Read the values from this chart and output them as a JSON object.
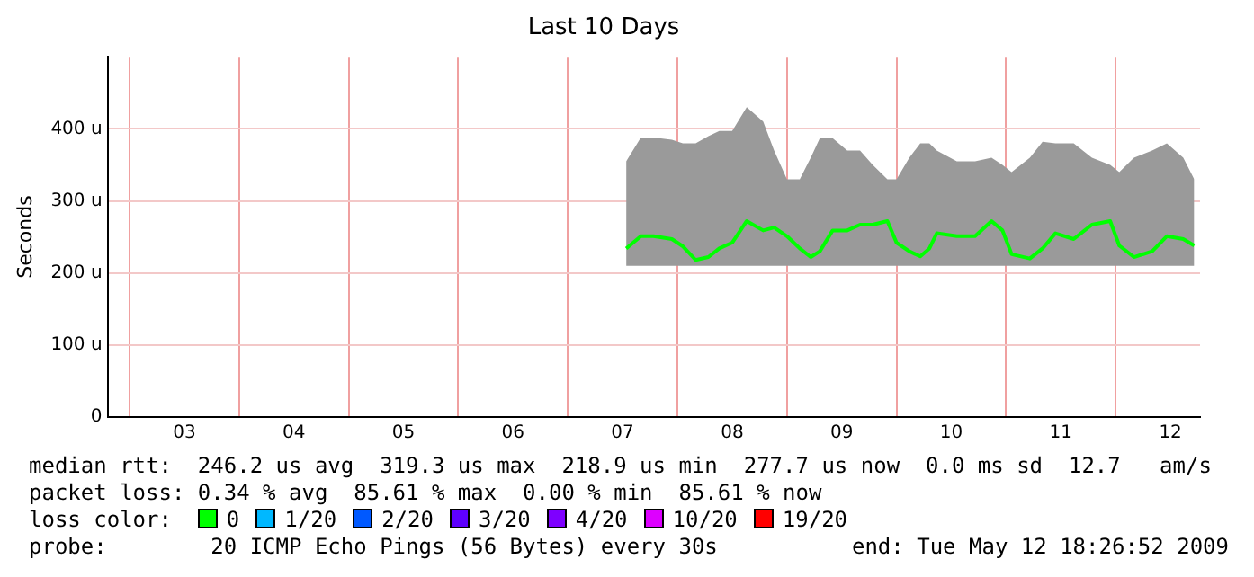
{
  "chart_data": {
    "type": "line",
    "title": "Last 10 Days",
    "ylabel": "Seconds",
    "x": [
      7.533,
      7.667,
      7.783,
      7.95,
      8.05,
      8.167,
      8.283,
      8.383,
      8.5,
      8.633,
      8.783,
      8.883,
      9.0,
      9.117,
      9.217,
      9.3,
      9.417,
      9.55,
      9.667,
      9.783,
      9.917,
      10.0,
      10.117,
      10.217,
      10.3,
      10.367,
      10.55,
      10.717,
      10.867,
      10.967,
      11.05,
      11.217,
      11.333,
      11.45,
      11.617,
      11.783,
      11.95,
      12.033,
      12.167,
      12.333,
      12.467,
      12.617,
      12.717
    ],
    "series": [
      {
        "name": "0",
        "color": "#00ff00",
        "values": [
          234,
          251,
          251,
          247,
          237,
          218,
          222,
          234,
          242,
          272,
          259,
          263,
          251,
          234,
          222,
          230,
          259,
          259,
          267,
          267,
          272,
          242,
          230,
          223,
          234,
          255,
          251,
          251,
          272,
          259,
          226,
          220,
          234,
          255,
          247,
          267,
          272,
          238,
          222,
          230,
          251,
          247,
          238
        ],
        "lower": [
          210,
          210,
          210,
          210,
          210,
          210,
          210,
          210,
          210,
          210,
          210,
          210,
          210,
          210,
          210,
          210,
          210,
          210,
          210,
          210,
          210,
          210,
          210,
          210,
          210,
          210,
          210,
          210,
          210,
          210,
          210,
          210,
          210,
          210,
          210,
          210,
          210,
          210,
          210,
          210,
          210,
          210,
          210
        ],
        "upper": [
          355,
          388,
          388,
          385,
          380,
          380,
          390,
          397,
          397,
          430,
          410,
          370,
          330,
          330,
          360,
          387,
          387,
          370,
          370,
          350,
          330,
          330,
          360,
          380,
          380,
          370,
          355,
          355,
          360,
          350,
          340,
          360,
          382,
          380,
          380,
          360,
          350,
          340,
          360,
          370,
          380,
          360,
          330
        ]
      },
      {
        "name": "1/20",
        "color": "#00b8ff",
        "values": [
          null,
          null,
          null,
          null,
          null,
          null,
          null,
          null,
          null,
          null,
          null,
          null,
          null,
          null,
          null,
          null,
          null,
          null,
          null,
          null,
          null,
          null,
          null,
          null,
          null,
          null,
          null,
          null,
          null,
          null,
          null,
          null,
          null,
          null,
          null,
          null,
          null,
          null,
          null,
          null,
          null,
          null,
          null
        ]
      },
      {
        "name": "2/20",
        "color": "#0059ff",
        "values": [
          null,
          null,
          null,
          null,
          null,
          null,
          null,
          null,
          null,
          null,
          null,
          null,
          null,
          null,
          null,
          null,
          null,
          null,
          null,
          null,
          null,
          null,
          null,
          null,
          null,
          null,
          null,
          null,
          null,
          null,
          null,
          null,
          null,
          null,
          null,
          null,
          null,
          null,
          null,
          null,
          null,
          null,
          null
        ]
      },
      {
        "name": "3/20",
        "color": "#5e00ff",
        "values": [
          null,
          null,
          null,
          null,
          null,
          null,
          null,
          null,
          null,
          null,
          null,
          null,
          null,
          null,
          null,
          null,
          null,
          null,
          null,
          null,
          null,
          null,
          null,
          null,
          null,
          null,
          null,
          null,
          null,
          null,
          null,
          null,
          null,
          null,
          null,
          null,
          null,
          null,
          null,
          null,
          null,
          null,
          null
        ]
      },
      {
        "name": "4/20",
        "color": "#7e00ff",
        "values": [
          null,
          null,
          null,
          null,
          null,
          null,
          null,
          null,
          null,
          null,
          null,
          null,
          null,
          null,
          null,
          null,
          null,
          null,
          null,
          null,
          null,
          null,
          null,
          null,
          null,
          null,
          null,
          null,
          null,
          null,
          null,
          null,
          null,
          null,
          null,
          null,
          null,
          null,
          null,
          null,
          null,
          null,
          null
        ]
      },
      {
        "name": "10/20",
        "color": "#dd00ff",
        "values": [
          null,
          null,
          null,
          null,
          null,
          null,
          null,
          null,
          null,
          null,
          null,
          null,
          null,
          null,
          null,
          null,
          null,
          null,
          null,
          null,
          null,
          null,
          null,
          null,
          null,
          null,
          null,
          null,
          null,
          null,
          null,
          null,
          null,
          null,
          null,
          null,
          null,
          null,
          null,
          null,
          null,
          null,
          null
        ]
      },
      {
        "name": "19/20",
        "color": "#ff0000",
        "values": [
          null,
          null,
          null,
          null,
          null,
          null,
          null,
          null,
          null,
          null,
          null,
          null,
          null,
          null,
          null,
          null,
          null,
          null,
          null,
          null,
          null,
          null,
          null,
          null,
          null,
          null,
          null,
          null,
          null,
          null,
          null,
          null,
          null,
          null,
          null,
          null,
          null,
          null,
          null,
          null,
          null,
          null,
          null
        ]
      }
    ],
    "legend": "bottom",
    "legend_title": "loss color:",
    "grid": true,
    "marker": "none",
    "line_style": "solid",
    "xlim": [
      2.8,
      12.77
    ],
    "xticks": [
      {
        "value": 3,
        "label": null
      },
      {
        "value": 3.5,
        "label": "03"
      },
      {
        "value": 4,
        "label": null
      },
      {
        "value": 4.5,
        "label": "04"
      },
      {
        "value": 5,
        "label": null
      },
      {
        "value": 5.5,
        "label": "05"
      },
      {
        "value": 6,
        "label": null
      },
      {
        "value": 6.5,
        "label": "06"
      },
      {
        "value": 7,
        "label": null
      },
      {
        "value": 7.5,
        "label": "07"
      },
      {
        "value": 8,
        "label": null
      },
      {
        "value": 8.5,
        "label": "08"
      },
      {
        "value": 9,
        "label": null
      },
      {
        "value": 9.5,
        "label": "09"
      },
      {
        "value": 10,
        "label": null
      },
      {
        "value": 10.5,
        "label": "10"
      },
      {
        "value": 11,
        "label": null
      },
      {
        "value": 11.5,
        "label": "11"
      },
      {
        "value": 12,
        "label": null
      },
      {
        "value": 12.5,
        "label": "12"
      }
    ],
    "ylim": [
      0,
      500
    ],
    "yticks": [
      0,
      {
        "value": 100,
        "label": "100 u"
      },
      {
        "value": 200,
        "label": "200 u"
      },
      {
        "value": 300,
        "label": "300 u"
      },
      {
        "value": 400,
        "label": "400 u"
      }
    ],
    "annotations": [
      "median rtt:  246.2 us avg  319.3 us max  218.9 us min  277.7 us now  0.0 ms sd  12.7   am/s",
      "packet loss: 0.34 % avg  85.61 % max  0.00 % min  85.61 % now",
      "probe:        20 ICMP Echo Pings (56 Bytes) every 30s",
      "end: Tue May 12 18:26:52 2009"
    ]
  }
}
